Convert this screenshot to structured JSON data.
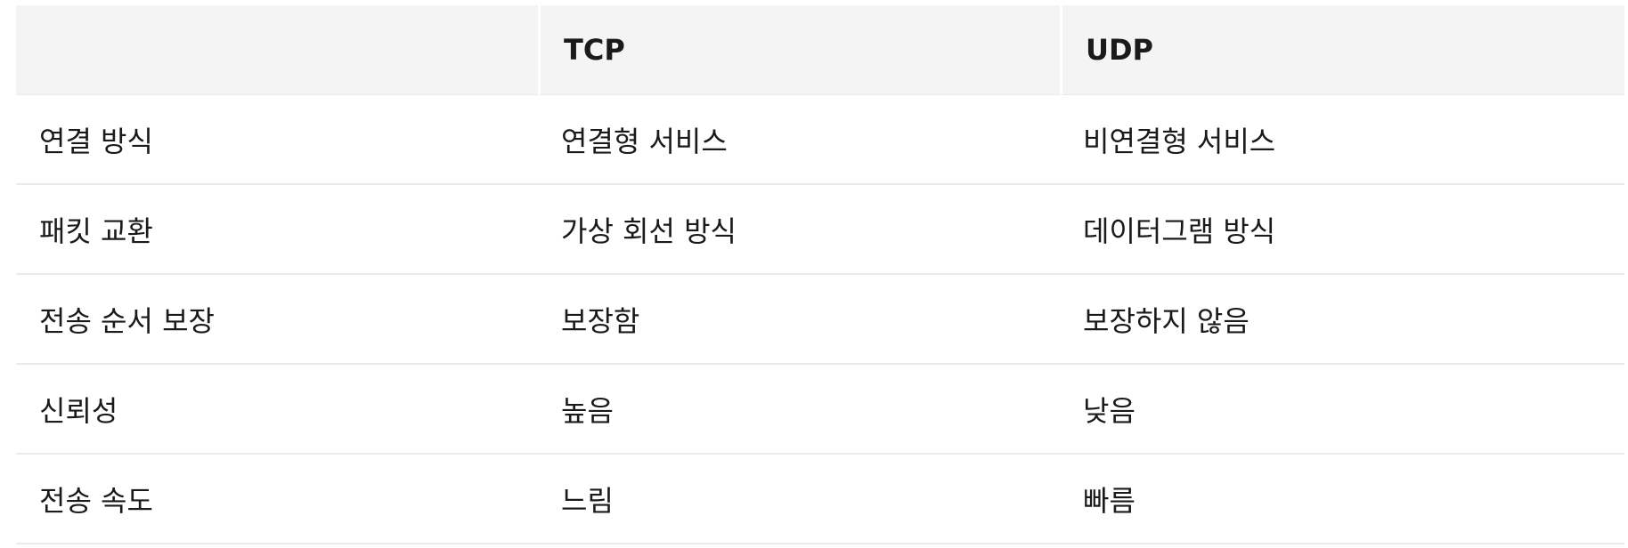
{
  "table": {
    "headers": [
      "",
      "TCP",
      "UDP"
    ],
    "rows": [
      [
        "연결 방식",
        "연결형 서비스",
        "비연결형 서비스"
      ],
      [
        "패킷 교환",
        "가상 회선 방식",
        "데이터그램 방식"
      ],
      [
        "전송 순서 보장",
        "보장함",
        "보장하지 않음"
      ],
      [
        "신뢰성",
        "높음",
        "낮음"
      ],
      [
        "전송 속도",
        "느림",
        "빠름"
      ]
    ]
  }
}
